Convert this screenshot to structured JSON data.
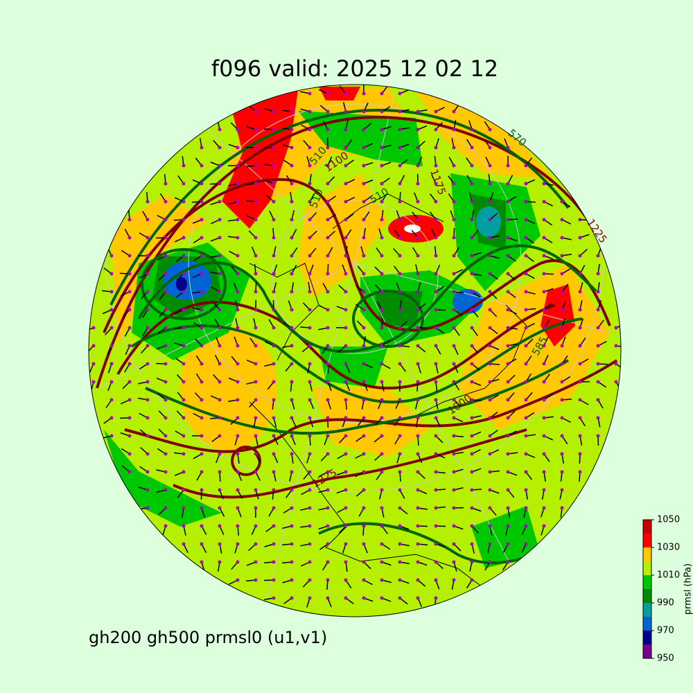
{
  "title": "f096 valid:   2025 12 02 12",
  "caption": "gh200 gh500 prmsl0 (u1,v1)",
  "contour_labels": [
    "510",
    "1100",
    "510",
    "570",
    "1175",
    "1225",
    "585",
    "1000",
    "1225",
    "510"
  ],
  "colorbar": {
    "label": "prmsl (hPa)",
    "levels": [
      950,
      960,
      970,
      980,
      990,
      1000,
      1010,
      1020,
      1030,
      1040,
      1050
    ],
    "colors": [
      "#7a0090",
      "#00008c",
      "#0064d2",
      "#00a0a0",
      "#008c00",
      "#00c800",
      "#b4f000",
      "#ffc800",
      "#ff0000",
      "#c80000"
    ],
    "ticks": [
      950,
      970,
      990,
      1010,
      1030,
      1050
    ]
  }
}
